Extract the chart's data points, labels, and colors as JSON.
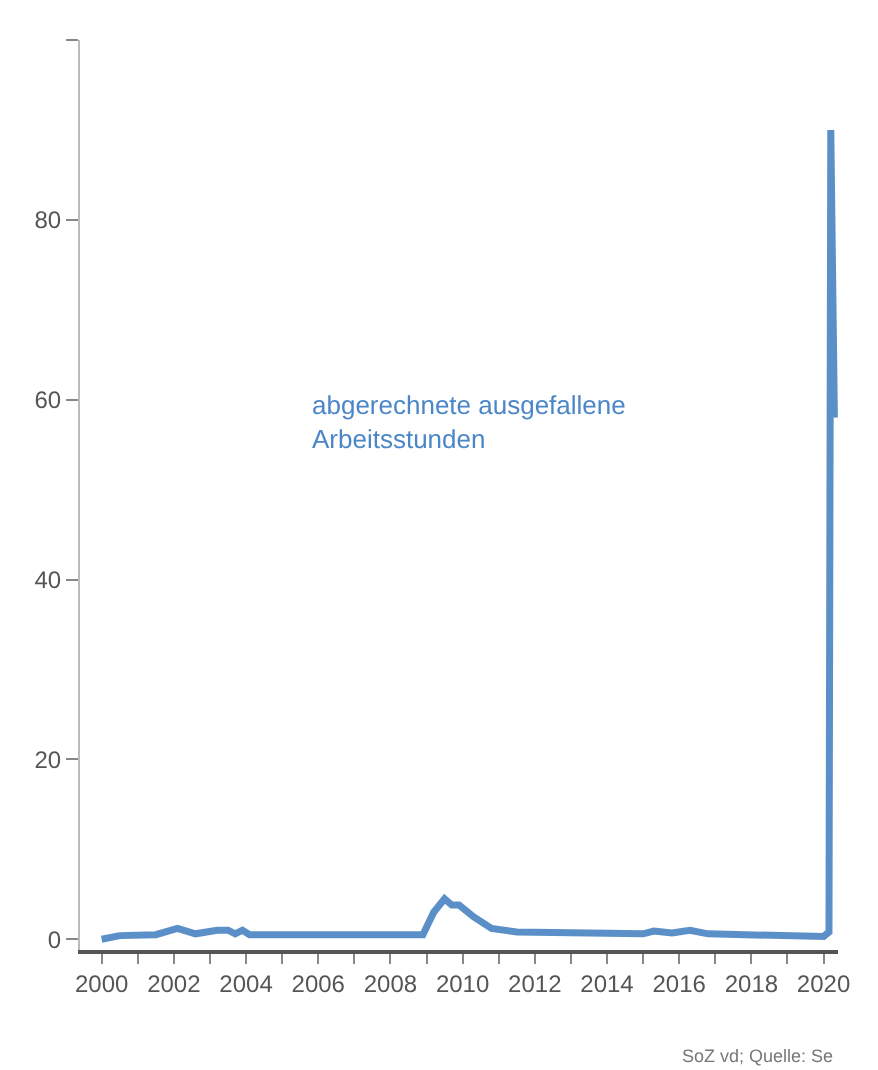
{
  "chart_data": {
    "type": "line",
    "x": [
      2000.0,
      2000.5,
      2001.5,
      2002.1,
      2002.6,
      2003.2,
      2003.5,
      2003.7,
      2003.9,
      2004.1,
      2008.9,
      2009.2,
      2009.5,
      2009.7,
      2009.9,
      2010.3,
      2010.8,
      2011.5,
      2015.0,
      2015.3,
      2015.8,
      2016.3,
      2016.8,
      2020.0,
      2020.15,
      2020.2,
      2020.3
    ],
    "series": [
      {
        "color": "#5b8fc7",
        "values": [
          0,
          0.4,
          0.5,
          1.2,
          0.6,
          1.0,
          1.0,
          0.6,
          1.0,
          0.5,
          0.5,
          3.0,
          4.5,
          3.8,
          3.8,
          2.5,
          1.2,
          0.8,
          0.6,
          0.9,
          0.7,
          1.0,
          0.6,
          0.3,
          0.8,
          90,
          58
        ]
      }
    ],
    "xlim": [
      1999.4,
      2020.4
    ],
    "xticks": [
      2000,
      {
        "value": 2001,
        "label": null
      },
      2002,
      {
        "value": 2003,
        "label": null
      },
      2004,
      {
        "value": 2005,
        "label": null
      },
      2006,
      {
        "value": 2007,
        "label": null
      },
      2008,
      {
        "value": 2009,
        "label": null
      },
      2010,
      {
        "value": 2011,
        "label": null
      },
      2012,
      {
        "value": 2013,
        "label": null
      },
      2014,
      {
        "value": 2015,
        "label": null
      },
      2016,
      {
        "value": 2017,
        "label": null
      },
      2018,
      {
        "value": 2019,
        "label": null
      },
      2020
    ],
    "ylim": [
      -1.2,
      100
    ],
    "yticks": [
      0,
      20,
      40,
      60,
      80,
      {
        "value": 100,
        "label": null
      }
    ],
    "marker": "none",
    "line_style": "solid",
    "annotations": [
      "abgerechnete ausgefallene Arbeitsstunden",
      "SoZ vd; Quelle: Se"
    ]
  }
}
